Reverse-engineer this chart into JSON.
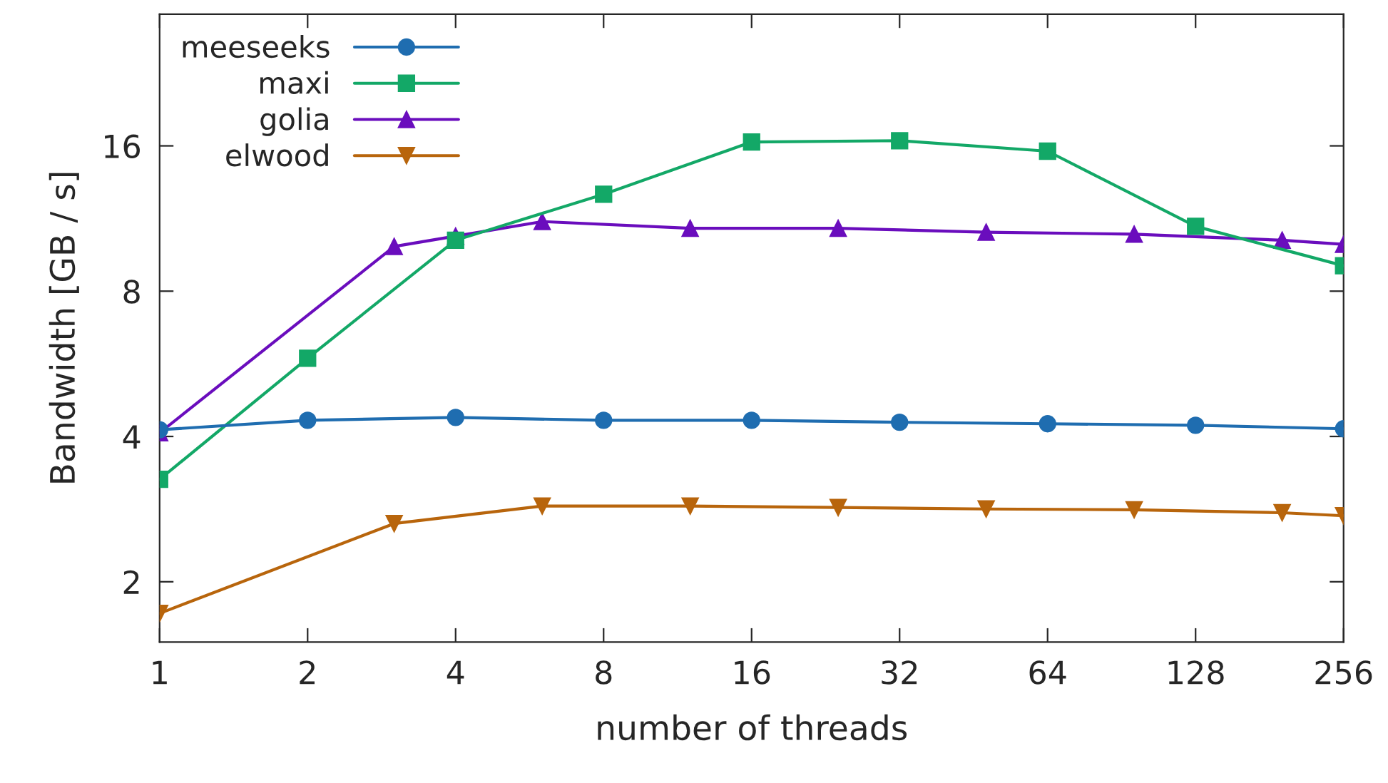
{
  "chart_data": {
    "type": "line",
    "xlabel": "number of threads",
    "ylabel": "Bandwidth [GB / s]",
    "log": "xy",
    "xlim": [
      1,
      256
    ],
    "ylim": [
      1.5,
      30
    ],
    "xticks": [
      1,
      2,
      4,
      8,
      16,
      32,
      64,
      128,
      256
    ],
    "yticks": [
      2,
      4,
      8,
      16
    ],
    "grid": false,
    "legend": "top left",
    "line_style": "solid",
    "series": [
      {
        "name": "meeseeks",
        "color": "#1f6db0",
        "marker": "circle",
        "x": [
          1,
          2,
          4,
          8,
          16,
          32,
          64,
          128,
          256
        ],
        "values": [
          4.13,
          4.32,
          4.38,
          4.32,
          4.32,
          4.28,
          4.25,
          4.22,
          4.15
        ]
      },
      {
        "name": "maxi",
        "color": "#13a867",
        "marker": "square",
        "x": [
          1,
          2,
          4,
          8,
          16,
          32,
          64,
          128,
          256
        ],
        "values": [
          3.26,
          5.81,
          10.2,
          12.7,
          16.3,
          16.4,
          15.6,
          10.9,
          9.03
        ]
      },
      {
        "name": "golia",
        "color": "#6a0dbd",
        "marker": "triangle",
        "x": [
          1,
          3,
          4,
          6,
          12,
          24,
          48,
          96,
          192,
          256
        ],
        "values": [
          4.07,
          9.9,
          10.4,
          11.15,
          10.8,
          10.8,
          10.6,
          10.5,
          10.2,
          10.0
        ]
      },
      {
        "name": "elwood",
        "color": "#b8650c",
        "marker": "triangle_down",
        "x": [
          1,
          3,
          6,
          12,
          24,
          48,
          96,
          192,
          256
        ],
        "values": [
          1.72,
          2.64,
          2.87,
          2.87,
          2.85,
          2.83,
          2.82,
          2.78,
          2.74
        ]
      }
    ]
  }
}
